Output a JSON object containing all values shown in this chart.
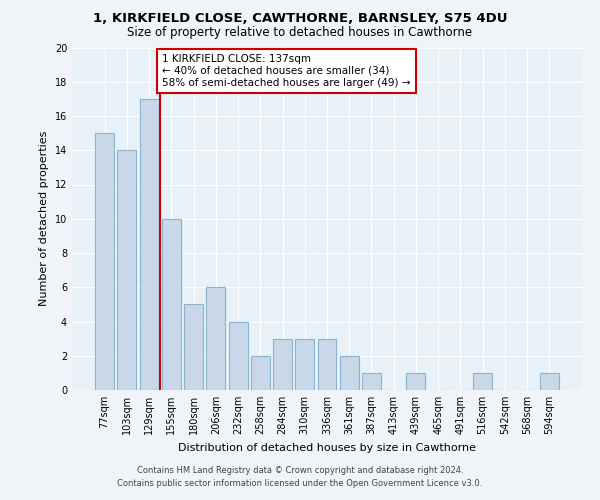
{
  "title1": "1, KIRKFIELD CLOSE, CAWTHORNE, BARNSLEY, S75 4DU",
  "title2": "Size of property relative to detached houses in Cawthorne",
  "xlabel": "Distribution of detached houses by size in Cawthorne",
  "ylabel": "Number of detached properties",
  "categories": [
    "77sqm",
    "103sqm",
    "129sqm",
    "155sqm",
    "180sqm",
    "206sqm",
    "232sqm",
    "258sqm",
    "284sqm",
    "310sqm",
    "336sqm",
    "361sqm",
    "387sqm",
    "413sqm",
    "439sqm",
    "465sqm",
    "491sqm",
    "516sqm",
    "542sqm",
    "568sqm",
    "594sqm"
  ],
  "values": [
    15,
    14,
    17,
    10,
    5,
    6,
    4,
    2,
    3,
    3,
    3,
    2,
    1,
    0,
    1,
    0,
    0,
    1,
    0,
    0,
    1
  ],
  "bar_color": "#c8d8e8",
  "bar_edge_color": "#8ab4d0",
  "vline_color": "#cc0000",
  "annotation_text": "1 KIRKFIELD CLOSE: 137sqm\n← 40% of detached houses are smaller (34)\n58% of semi-detached houses are larger (49) →",
  "annotation_box_color": "#cc0000",
  "ylim": [
    0,
    20
  ],
  "yticks": [
    0,
    2,
    4,
    6,
    8,
    10,
    12,
    14,
    16,
    18,
    20
  ],
  "footer1": "Contains HM Land Registry data © Crown copyright and database right 2024.",
  "footer2": "Contains public sector information licensed under the Open Government Licence v3.0.",
  "bg_color": "#f0f4f8",
  "plot_bg_color": "#e8f0f8",
  "title1_fontsize": 9.5,
  "title2_fontsize": 8.5,
  "xlabel_fontsize": 8.0,
  "ylabel_fontsize": 8.0,
  "tick_fontsize": 7.0,
  "ann_fontsize": 7.5,
  "footer_fontsize": 6.0
}
